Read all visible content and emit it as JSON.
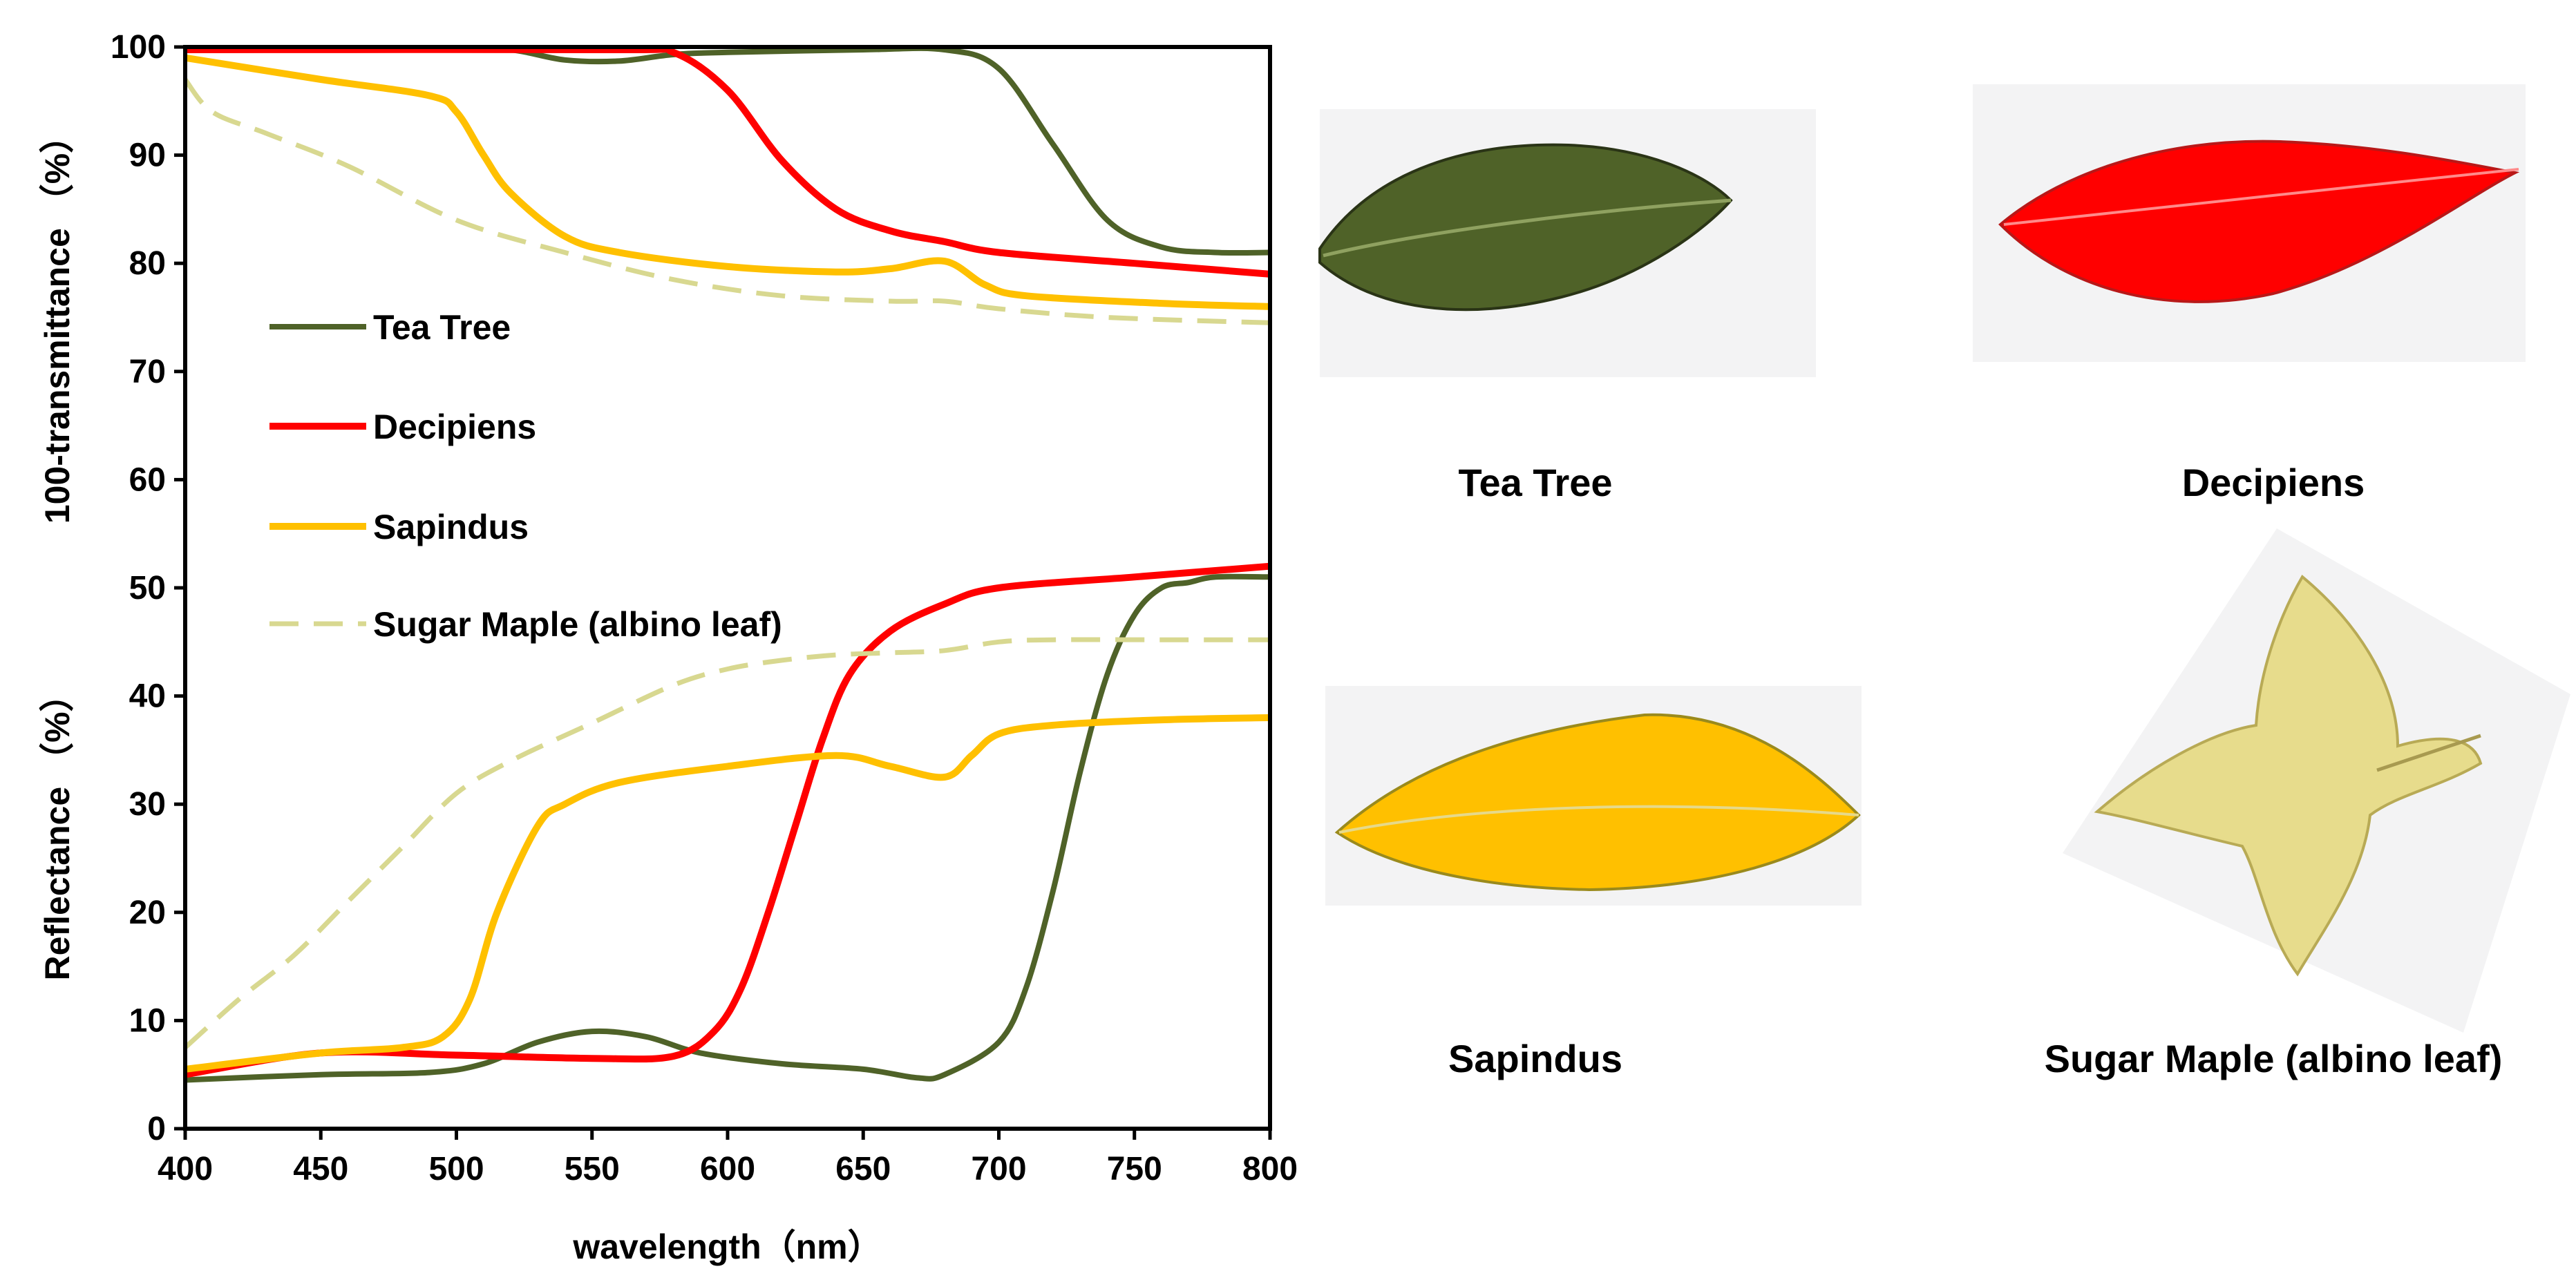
{
  "colors": {
    "tea_tree": "#4f6228",
    "decipiens": "#ff0000",
    "sapindus": "#ffc000",
    "sugar_maple": "#d8d890",
    "axis": "#000000",
    "photo_bg": "#f3f3f4"
  },
  "chart_data": {
    "type": "line",
    "xlabel": "wavelength（nm）",
    "ylabel_top": "100-transmittance （%）",
    "ylabel_bottom": "Reflectance （%）",
    "xlim": [
      400,
      800
    ],
    "ylim": [
      0,
      100
    ],
    "grid": false,
    "legend_position": "left-middle",
    "x_ticks": [
      "400",
      "450",
      "500",
      "550",
      "600",
      "650",
      "700",
      "750",
      "800"
    ],
    "y_ticks": [
      "0",
      "10",
      "20",
      "30",
      "40",
      "50",
      "60",
      "70",
      "80",
      "90",
      "100"
    ],
    "legend": [
      "Tea Tree",
      "Decipiens",
      "Sapindus",
      "Sugar Maple (albino leaf)"
    ],
    "series": [
      {
        "name": "Tea Tree",
        "key": "tea_tree",
        "dashed": false,
        "measure": "100-transmittance",
        "x": [
          400,
          500,
          520,
          540,
          560,
          580,
          600,
          650,
          680,
          700,
          720,
          740,
          760,
          780,
          800
        ],
        "y": [
          100,
          100,
          99.8,
          98.8,
          98.7,
          99.3,
          99.5,
          99.8,
          100,
          98,
          91,
          84,
          81.5,
          81,
          81
        ]
      },
      {
        "name": "Tea Tree",
        "key": "tea_tree",
        "dashed": false,
        "measure": "reflectance",
        "x": [
          400,
          450,
          490,
          510,
          530,
          550,
          570,
          590,
          620,
          650,
          670,
          680,
          700,
          710,
          720,
          730,
          740,
          750,
          760,
          770,
          780,
          800
        ],
        "y": [
          4.5,
          5,
          5.2,
          6,
          8,
          9,
          8.5,
          7,
          6,
          5.5,
          4.7,
          5,
          8,
          13,
          22,
          33,
          42,
          47.5,
          50,
          50.5,
          51,
          51
        ]
      },
      {
        "name": "Decipiens",
        "key": "decipiens",
        "dashed": false,
        "measure": "100-transmittance",
        "x": [
          400,
          560,
          580,
          600,
          620,
          640,
          660,
          680,
          700,
          750,
          800
        ],
        "y": [
          100,
          100,
          99.5,
          96,
          89.5,
          85,
          83,
          82,
          81,
          80,
          79
        ]
      },
      {
        "name": "Decipiens",
        "key": "decipiens",
        "dashed": false,
        "measure": "reflectance",
        "x": [
          400,
          450,
          500,
          550,
          580,
          595,
          605,
          615,
          625,
          635,
          645,
          660,
          680,
          700,
          750,
          800
        ],
        "y": [
          5,
          7,
          6.8,
          6.5,
          6.7,
          9,
          13,
          20,
          28,
          36,
          42,
          46,
          48.5,
          50,
          51,
          52
        ]
      },
      {
        "name": "Sapindus",
        "key": "sapindus",
        "dashed": false,
        "measure": "100-transmittance",
        "x": [
          400,
          450,
          490,
          500,
          510,
          520,
          540,
          560,
          600,
          640,
          660,
          680,
          695,
          710,
          760,
          800
        ],
        "y": [
          99,
          97,
          95.5,
          94,
          90,
          86.5,
          82.5,
          81,
          79.7,
          79.2,
          79.5,
          80.2,
          78,
          77,
          76.3,
          76
        ]
      },
      {
        "name": "Sapindus",
        "key": "sapindus",
        "dashed": false,
        "measure": "reflectance",
        "x": [
          400,
          450,
          480,
          495,
          505,
          515,
          530,
          540,
          560,
          600,
          640,
          660,
          680,
          690,
          700,
          720,
          760,
          800
        ],
        "y": [
          5.5,
          7,
          7.5,
          8.5,
          12,
          20,
          28,
          30,
          32,
          33.5,
          34.5,
          33.5,
          32.5,
          34.5,
          36.5,
          37.3,
          37.8,
          38
        ]
      },
      {
        "name": "Sugar Maple (albino leaf)",
        "key": "sugar_maple",
        "dashed": true,
        "measure": "100-transmittance",
        "x": [
          400,
          410,
          430,
          460,
          500,
          540,
          580,
          620,
          660,
          680,
          700,
          740,
          800
        ],
        "y": [
          97,
          94,
          92,
          89,
          84,
          81,
          78.5,
          77,
          76.5,
          76.5,
          75.8,
          75,
          74.5
        ]
      },
      {
        "name": "Sugar Maple (albino leaf)",
        "key": "sugar_maple",
        "dashed": true,
        "measure": "reflectance",
        "x": [
          400,
          420,
          440,
          460,
          480,
          500,
          520,
          550,
          580,
          600,
          620,
          640,
          660,
          680,
          700,
          720,
          760,
          800
        ],
        "y": [
          7.5,
          12,
          16,
          21,
          26,
          31,
          34,
          37.5,
          41,
          42.5,
          43.3,
          43.8,
          44,
          44.2,
          45,
          45.2,
          45.2,
          45.2
        ]
      }
    ]
  },
  "photos": [
    {
      "key": "tea_tree",
      "caption": "Tea Tree"
    },
    {
      "key": "decipiens",
      "caption": "Decipiens"
    },
    {
      "key": "sapindus",
      "caption": "Sapindus"
    },
    {
      "key": "sugar_maple",
      "caption": "Sugar Maple (albino leaf)"
    }
  ]
}
